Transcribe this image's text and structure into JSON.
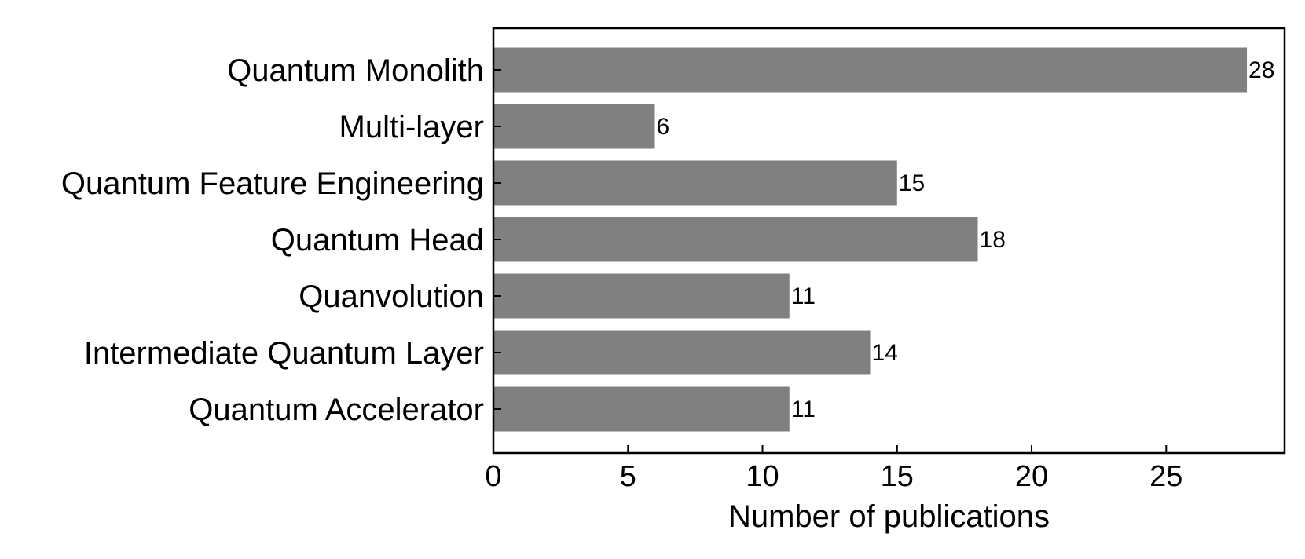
{
  "chart_data": {
    "type": "bar",
    "orientation": "horizontal",
    "categories": [
      "Quantum Monolith",
      "Multi-layer",
      "Quantum Feature Engineering",
      "Quantum Head",
      "Quanvolution",
      "Intermediate Quantum Layer",
      "Quantum Accelerator"
    ],
    "values": [
      28,
      6,
      15,
      18,
      11,
      14,
      11
    ],
    "title": "",
    "xlabel": "Number of publications",
    "ylabel": "",
    "xlim": [
      0,
      29.4
    ],
    "xticks": [
      0,
      5,
      10,
      15,
      20,
      25
    ],
    "xtick_labels": [
      "0",
      "5",
      "10",
      "15",
      "20",
      "25"
    ],
    "data_labels": [
      "28",
      "6",
      "15",
      "18",
      "11",
      "14",
      "11"
    ],
    "grid": false,
    "legend": "none",
    "bar_color": "#808080"
  }
}
